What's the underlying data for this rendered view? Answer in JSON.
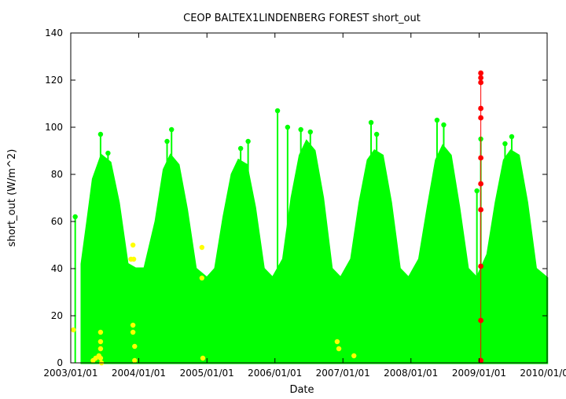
{
  "chart_data": {
    "type": "scatter",
    "title": "CEOP BALTEX1LINDENBERG FOREST  short_out",
    "xlabel": "Date",
    "ylabel": "short_out (W/m^2)",
    "xlim": [
      "2003/01/01",
      "2010/01/01"
    ],
    "ylim": [
      0,
      140
    ],
    "y_ticks": [
      0,
      20,
      40,
      60,
      80,
      100,
      120,
      140
    ],
    "x_ticks": [
      "2003/01/01",
      "2004/01/01",
      "2005/01/01",
      "2006/01/01",
      "2007/01/01",
      "2008/01/01",
      "2009/01/01",
      "2010/01/01"
    ],
    "x_tick_labels": [
      "2003/01/01",
      "2004/01/01",
      "2005/01/01",
      "2006/01/01",
      "2007/01/01",
      "2008/01/01",
      "2009/01/01",
      "2010/01/01"
    ],
    "grid": false,
    "legend": "none",
    "series": [
      {
        "color": "#00ff00",
        "description": "daily maxima envelope (seasonal cycle); dense data fill from 0 up to this envelope",
        "envelope": [
          {
            "x": "2003/03/01",
            "y": 42
          },
          {
            "x": "2003/04/01",
            "y": 60
          },
          {
            "x": "2003/05/01",
            "y": 78
          },
          {
            "x": "2003/06/15",
            "y": 88
          },
          {
            "x": "2003/08/01",
            "y": 85
          },
          {
            "x": "2003/09/15",
            "y": 68
          },
          {
            "x": "2003/11/01",
            "y": 42
          },
          {
            "x": "2003/12/15",
            "y": 40
          },
          {
            "x": "2004/02/01",
            "y": 40
          },
          {
            "x": "2004/04/01",
            "y": 60
          },
          {
            "x": "2004/05/15",
            "y": 82
          },
          {
            "x": "2004/06/20",
            "y": 88
          },
          {
            "x": "2004/08/01",
            "y": 84
          },
          {
            "x": "2004/09/15",
            "y": 65
          },
          {
            "x": "2004/11/01",
            "y": 40
          },
          {
            "x": "2005/01/01",
            "y": 36
          },
          {
            "x": "2005/02/15",
            "y": 40
          },
          {
            "x": "2005/04/01",
            "y": 62
          },
          {
            "x": "2005/05/15",
            "y": 80
          },
          {
            "x": "2005/06/20",
            "y": 86
          },
          {
            "x": "2005/08/01",
            "y": 84
          },
          {
            "x": "2005/09/15",
            "y": 66
          },
          {
            "x": "2005/11/01",
            "y": 40
          },
          {
            "x": "2005/12/20",
            "y": 36
          },
          {
            "x": "2006/02/15",
            "y": 44
          },
          {
            "x": "2006/04/01",
            "y": 70
          },
          {
            "x": "2006/05/15",
            "y": 88
          },
          {
            "x": "2006/06/20",
            "y": 94
          },
          {
            "x": "2006/08/01",
            "y": 90
          },
          {
            "x": "2006/09/15",
            "y": 70
          },
          {
            "x": "2006/11/01",
            "y": 40
          },
          {
            "x": "2006/12/20",
            "y": 36
          },
          {
            "x": "2007/02/15",
            "y": 44
          },
          {
            "x": "2007/04/01",
            "y": 68
          },
          {
            "x": "2007/05/15",
            "y": 86
          },
          {
            "x": "2007/06/20",
            "y": 90
          },
          {
            "x": "2007/08/01",
            "y": 88
          },
          {
            "x": "2007/09/15",
            "y": 68
          },
          {
            "x": "2007/11/01",
            "y": 40
          },
          {
            "x": "2007/12/20",
            "y": 36
          },
          {
            "x": "2008/02/15",
            "y": 44
          },
          {
            "x": "2008/04/01",
            "y": 66
          },
          {
            "x": "2008/05/15",
            "y": 86
          },
          {
            "x": "2008/06/20",
            "y": 92
          },
          {
            "x": "2008/08/01",
            "y": 88
          },
          {
            "x": "2008/09/15",
            "y": 66
          },
          {
            "x": "2008/11/01",
            "y": 40
          },
          {
            "x": "2008/12/20",
            "y": 36
          },
          {
            "x": "2009/02/15",
            "y": 46
          },
          {
            "x": "2009/04/01",
            "y": 68
          },
          {
            "x": "2009/05/15",
            "y": 86
          },
          {
            "x": "2009/06/20",
            "y": 90
          },
          {
            "x": "2009/08/01",
            "y": 88
          },
          {
            "x": "2009/09/15",
            "y": 68
          },
          {
            "x": "2009/11/01",
            "y": 40
          },
          {
            "x": "2009/12/31",
            "y": 36
          }
        ],
        "peaks": [
          {
            "x": "2003/01/25",
            "y": 62
          },
          {
            "x": "2003/06/10",
            "y": 97
          },
          {
            "x": "2003/07/20",
            "y": 89
          },
          {
            "x": "2004/06/01",
            "y": 94
          },
          {
            "x": "2004/06/25",
            "y": 99
          },
          {
            "x": "2005/07/01",
            "y": 91
          },
          {
            "x": "2005/08/10",
            "y": 94
          },
          {
            "x": "2006/01/15",
            "y": 107
          },
          {
            "x": "2006/03/10",
            "y": 100
          },
          {
            "x": "2006/05/20",
            "y": 99
          },
          {
            "x": "2006/07/10",
            "y": 98
          },
          {
            "x": "2007/06/01",
            "y": 102
          },
          {
            "x": "2007/07/01",
            "y": 97
          },
          {
            "x": "2008/05/20",
            "y": 103
          },
          {
            "x": "2008/06/25",
            "y": 101
          },
          {
            "x": "2009/05/20",
            "y": 93
          },
          {
            "x": "2009/06/25",
            "y": 96
          },
          {
            "x": "2008/12/20",
            "y": 73
          },
          {
            "x": "2003/12/01",
            "y": 30
          },
          {
            "x": "2009/01/10",
            "y": 95
          }
        ]
      },
      {
        "color": "#ffff00",
        "description": "flagged values (yellow)",
        "points": [
          {
            "x": "2003/01/15",
            "y": 14
          },
          {
            "x": "2003/05/01",
            "y": 1
          },
          {
            "x": "2003/05/15",
            "y": 2
          },
          {
            "x": "2003/06/01",
            "y": 3
          },
          {
            "x": "2003/06/10",
            "y": 13
          },
          {
            "x": "2003/06/10",
            "y": 9
          },
          {
            "x": "2003/06/10",
            "y": 6
          },
          {
            "x": "2003/06/10",
            "y": 2
          },
          {
            "x": "2003/06/15",
            "y": 0
          },
          {
            "x": "2003/11/20",
            "y": 44
          },
          {
            "x": "2003/12/05",
            "y": 44
          },
          {
            "x": "2003/12/01",
            "y": 50
          },
          {
            "x": "2003/12/01",
            "y": 16
          },
          {
            "x": "2003/12/01",
            "y": 13
          },
          {
            "x": "2003/12/10",
            "y": 7
          },
          {
            "x": "2003/12/10",
            "y": 1
          },
          {
            "x": "2004/12/05",
            "y": 49
          },
          {
            "x": "2004/12/05",
            "y": 36
          },
          {
            "x": "2004/12/10",
            "y": 2
          },
          {
            "x": "2006/12/01",
            "y": 9
          },
          {
            "x": "2006/12/10",
            "y": 6
          },
          {
            "x": "2007/03/01",
            "y": 3
          }
        ]
      },
      {
        "color": "#ff0000",
        "description": "flagged values (red)",
        "points": [
          {
            "x": "2009/01/10",
            "y": 123
          },
          {
            "x": "2009/01/10",
            "y": 121
          },
          {
            "x": "2009/01/10",
            "y": 119
          },
          {
            "x": "2009/01/10",
            "y": 108
          },
          {
            "x": "2009/01/10",
            "y": 104
          },
          {
            "x": "2009/01/10",
            "y": 87
          },
          {
            "x": "2009/01/10",
            "y": 76
          },
          {
            "x": "2009/01/10",
            "y": 65
          },
          {
            "x": "2009/01/10",
            "y": 41
          },
          {
            "x": "2009/01/10",
            "y": 18
          },
          {
            "x": "2009/01/10",
            "y": 1
          }
        ]
      }
    ]
  }
}
